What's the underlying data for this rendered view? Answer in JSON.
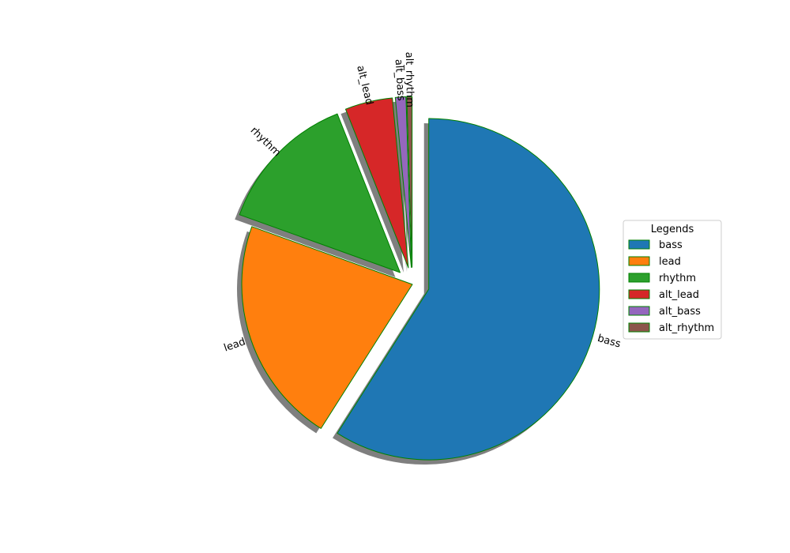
{
  "chart_data": {
    "type": "pie",
    "title": "",
    "slices": [
      {
        "label": "bass",
        "value": 59.0,
        "color": "#1f77b4",
        "exploded": true
      },
      {
        "label": "lead",
        "value": 21.5,
        "color": "#ff7f0e",
        "exploded": false
      },
      {
        "label": "rhythm",
        "value": 13.5,
        "color": "#2ca02c",
        "exploded": true
      },
      {
        "label": "alt_lead",
        "value": 4.5,
        "color": "#d62728",
        "exploded": true
      },
      {
        "label": "alt_bass",
        "value": 1.0,
        "color": "#9467bd",
        "exploded": true
      },
      {
        "label": "alt_rhythm",
        "value": 0.5,
        "color": "#8c564b",
        "exploded": true
      }
    ],
    "edge_color": "#008000",
    "shadow": true,
    "start_angle_deg": 90,
    "direction": "clockwise",
    "legend": {
      "title": "Legends",
      "placement": "center-right"
    }
  }
}
